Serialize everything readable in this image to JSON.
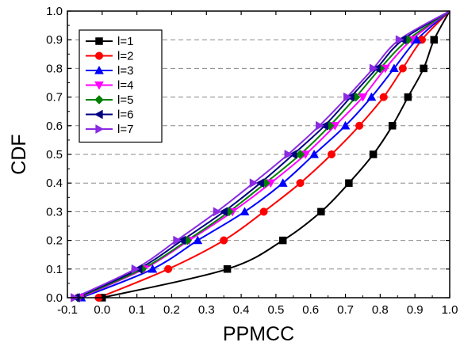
{
  "chart_data": {
    "type": "line",
    "title": "",
    "xlabel": "PPMCC",
    "ylabel": "CDF",
    "xlim": [
      -0.1,
      1.0
    ],
    "ylim": [
      0.0,
      1.0
    ],
    "xticks": [
      "-0.1",
      "0.0",
      "0.1",
      "0.2",
      "0.3",
      "0.4",
      "0.5",
      "0.6",
      "0.7",
      "0.8",
      "0.9",
      "1.0"
    ],
    "yticks": [
      "0.0",
      "0.1",
      "0.2",
      "0.3",
      "0.4",
      "0.5",
      "0.6",
      "0.7",
      "0.8",
      "0.9",
      "1.0"
    ],
    "grid": "horizontal dashed",
    "legend_position": "top-left",
    "y": [
      0.0,
      0.1,
      0.2,
      0.3,
      0.4,
      0.5,
      0.6,
      0.7,
      0.8,
      0.9
    ],
    "series": [
      {
        "name": "l=1",
        "color": "#000000",
        "marker": "square",
        "x": [
          0.0,
          0.36,
          0.52,
          0.63,
          0.71,
          0.78,
          0.835,
          0.88,
          0.925,
          0.955
        ]
      },
      {
        "name": "l=2",
        "color": "#ff0000",
        "marker": "circle",
        "x": [
          -0.01,
          0.19,
          0.35,
          0.465,
          0.57,
          0.66,
          0.74,
          0.81,
          0.865,
          0.92
        ]
      },
      {
        "name": "l=3",
        "color": "#0000ff",
        "marker": "triangle-up",
        "x": [
          -0.06,
          0.145,
          0.275,
          0.41,
          0.52,
          0.61,
          0.7,
          0.775,
          0.84,
          0.905
        ]
      },
      {
        "name": "l=4",
        "color": "#ff00ff",
        "marker": "triangle-down",
        "x": [
          -0.065,
          0.12,
          0.25,
          0.375,
          0.485,
          0.585,
          0.67,
          0.75,
          0.815,
          0.89
        ]
      },
      {
        "name": "l=5",
        "color": "#008000",
        "marker": "diamond",
        "x": [
          -0.07,
          0.115,
          0.245,
          0.365,
          0.47,
          0.57,
          0.655,
          0.73,
          0.8,
          0.88
        ]
      },
      {
        "name": "l=6",
        "color": "#000080",
        "marker": "triangle-left",
        "x": [
          -0.075,
          0.105,
          0.23,
          0.35,
          0.455,
          0.55,
          0.64,
          0.715,
          0.79,
          0.865
        ]
      },
      {
        "name": "l=7",
        "color": "#8a2be2",
        "marker": "triangle-right",
        "x": [
          -0.08,
          0.095,
          0.215,
          0.33,
          0.435,
          0.535,
          0.625,
          0.705,
          0.78,
          0.855
        ]
      }
    ]
  }
}
